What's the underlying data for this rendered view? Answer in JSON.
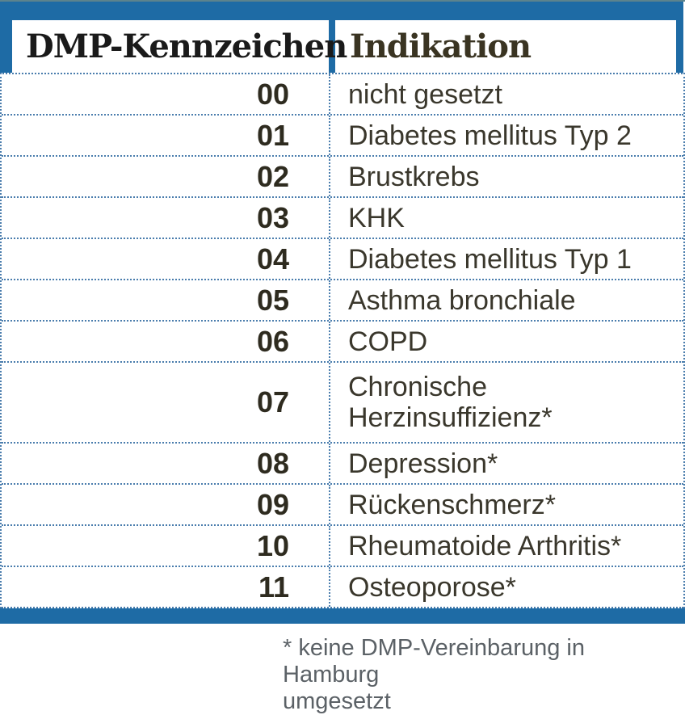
{
  "table": {
    "header": {
      "col1": "DMP-Kennzeichen",
      "col2": "Indikation"
    },
    "rows": [
      {
        "code": "00",
        "indication": "nicht gesetzt"
      },
      {
        "code": "01",
        "indication": "Diabetes mellitus Typ 2"
      },
      {
        "code": "02",
        "indication": "Brustkrebs"
      },
      {
        "code": "03",
        "indication": "KHK"
      },
      {
        "code": "04",
        "indication": "Diabetes mellitus Typ 1"
      },
      {
        "code": "05",
        "indication": "Asthma bronchiale"
      },
      {
        "code": "06",
        "indication": "COPD"
      },
      {
        "code": "07",
        "indication": "Chronische Herzinsuffizienz*"
      },
      {
        "code": "08",
        "indication": "Depression*"
      },
      {
        "code": "09",
        "indication": "Rückenschmerz*"
      },
      {
        "code": "10",
        "indication": "Rheumatoide Arthritis*"
      },
      {
        "code": "11",
        "indication": "Osteoporose*"
      }
    ]
  },
  "footnote": {
    "line1": "* keine DMP-Vereinbarung in Hamburg",
    "line2": "umgesetzt"
  },
  "colors": {
    "accent_blue": "#1e6ba5",
    "dotted_border": "#4a7dad",
    "header_col1_text": "#1a1a1a",
    "header_col2_text": "#3a3422",
    "body_text": "#3a372c",
    "code_text": "#2e2b1f",
    "footnote_text": "#5b6166"
  }
}
